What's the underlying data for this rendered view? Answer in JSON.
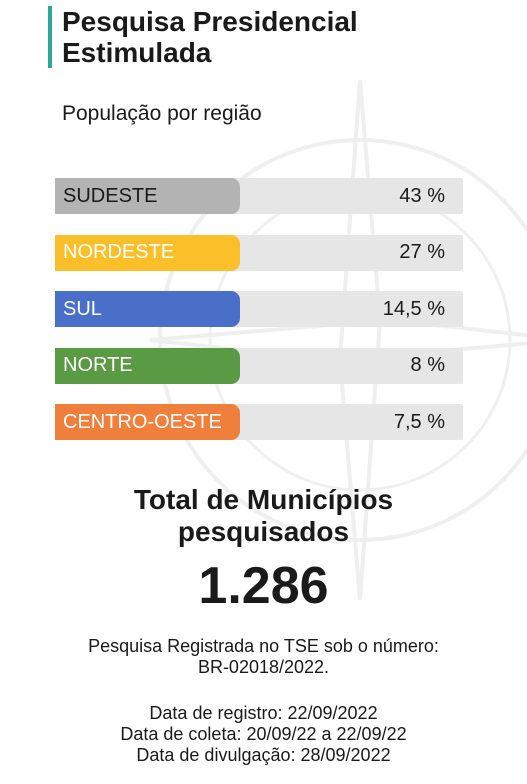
{
  "header": {
    "title_line1": "Pesquisa Presidencial",
    "title_line2": "Estimulada",
    "subtitle": "População por região"
  },
  "chart_data": {
    "type": "bar",
    "subtitle": "População por região",
    "categories": [
      "SUDESTE",
      "NORDESTE",
      "SUL",
      "NORTE",
      "CENTRO-OESTE"
    ],
    "values": [
      43,
      27,
      14.5,
      8,
      7.5
    ],
    "value_labels": [
      "43 %",
      "27 %",
      "14,5 %",
      "8 %",
      "7,5 %"
    ],
    "colors": [
      "#b3b3b3",
      "#fbbf2a",
      "#4a6fc8",
      "#5a9a45",
      "#ef7f3b"
    ],
    "label_colors": [
      "#1a1a1a",
      "#ffffff",
      "#ffffff",
      "#ffffff",
      "#ffffff"
    ],
    "unit": "%"
  },
  "total": {
    "label_line1": "Total de Municípios",
    "label_line2": "pesquisados",
    "value": "1.286"
  },
  "registration": {
    "line1": "Pesquisa Registrada no TSE sob o número:",
    "line2": "BR-02018/2022."
  },
  "dates": {
    "registro": "Data de registro: 22/09/2022",
    "coleta": "Data de coleta: 20/09/22 a 22/09/22",
    "divulgacao": "Data de divulgação: 28/09/2022"
  }
}
